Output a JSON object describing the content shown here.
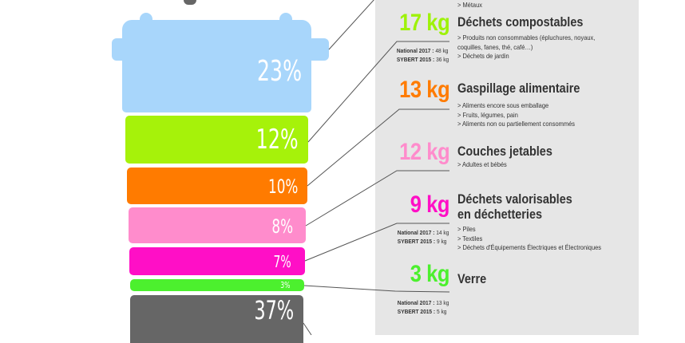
{
  "bin": {
    "segments": [
      {
        "percent": "23%",
        "color": "#a8d6fb"
      },
      {
        "percent": "12%",
        "color": "#a6f20a"
      },
      {
        "percent": "10%",
        "color": "#ff7b00"
      },
      {
        "percent": "8%",
        "color": "#ff8ccc"
      },
      {
        "percent": "7%",
        "color": "#ff0fc6"
      },
      {
        "percent": "3%",
        "color": "#4cf02e"
      },
      {
        "percent": "37%",
        "color": "#666666"
      }
    ]
  },
  "categories": [
    {
      "top_desc": "> Métaux"
    },
    {
      "kg": "17 kg",
      "color": "#9ef20a",
      "title": "Déchets compostables",
      "desc": [
        "> Produits non consommables (épluchures, noyaux,",
        "coquilles, fanes, thé, café…)",
        ">  Déchets de jardin"
      ],
      "national": "National 2017 :",
      "national_value": "48 kg",
      "sybert": "SYBERT 2015 :",
      "sybert_value": "36 kg"
    },
    {
      "kg": "13 kg",
      "color": "#ff7b00",
      "title": "Gaspillage alimentaire",
      "desc": [
        "> Aliments encore sous emballage",
        "> Fruits, légumes, pain",
        "> Aliments non ou partiellement consommés"
      ]
    },
    {
      "kg": "12 kg",
      "color": "#ff8ccc",
      "title": "Couches jetables",
      "desc": [
        "> Adultes et bébés"
      ]
    },
    {
      "kg": "9 kg",
      "color": "#ff0fc6",
      "title": "Déchets valorisables",
      "title2": "en déchetteries",
      "desc": [
        "> Piles",
        "> Textiles",
        "> Déchets d'Équipements Électriques et Électroniques"
      ],
      "national": "National 2017 :",
      "national_value": "14 kg",
      "sybert": "SYBERT 2015 :",
      "sybert_value": "9 kg"
    },
    {
      "kg": "3 kg",
      "color": "#4cf02e",
      "title": "Verre",
      "national": "National 2017 :",
      "national_value": "13 kg",
      "sybert": "SYBERT 2015 :",
      "sybert_value": "5 kg"
    }
  ]
}
